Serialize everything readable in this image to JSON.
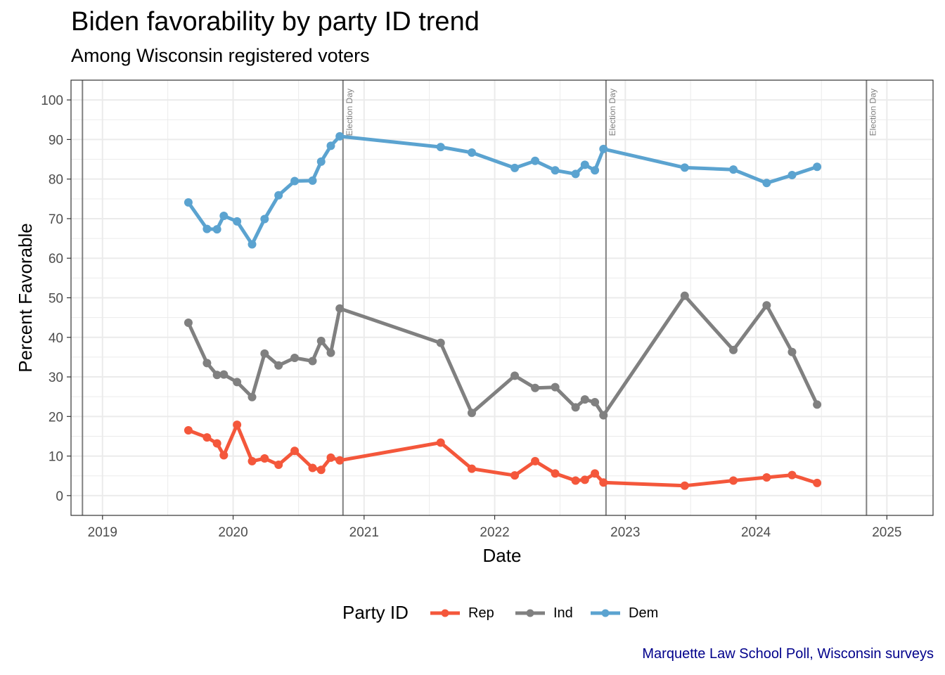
{
  "chart_data": {
    "type": "line",
    "title": "Biden favorability by party ID trend",
    "subtitle": "Among Wisconsin registered voters",
    "xlabel": "Date",
    "ylabel": "Percent Favorable",
    "caption": "Marquette Law School Poll, Wisconsin surveys",
    "x_range": [
      "2018-10-05",
      "2025-05-10"
    ],
    "ylim": [
      -5,
      105
    ],
    "y_ticks": [
      0,
      10,
      20,
      30,
      40,
      50,
      60,
      70,
      80,
      90,
      100
    ],
    "x_ticks": [
      {
        "date": "2019-01-01",
        "label": "2019"
      },
      {
        "date": "2020-01-01",
        "label": "2020"
      },
      {
        "date": "2021-01-01",
        "label": "2021"
      },
      {
        "date": "2022-01-01",
        "label": "2022"
      },
      {
        "date": "2023-01-01",
        "label": "2023"
      },
      {
        "date": "2024-01-01",
        "label": "2024"
      },
      {
        "date": "2025-01-01",
        "label": "2025"
      }
    ],
    "grid": true,
    "legend_title": "Party ID",
    "legend_position": "bottom",
    "reference_lines": [
      {
        "date": "2018-11-06",
        "label": ""
      },
      {
        "date": "2020-11-03",
        "label": "Election Day"
      },
      {
        "date": "2022-11-08",
        "label": "Election Day"
      },
      {
        "date": "2024-11-05",
        "label": "Election Day"
      }
    ],
    "series": [
      {
        "name": "Rep",
        "color": "#f4573b",
        "points": [
          [
            "2019-08-29",
            16.5
          ],
          [
            "2019-10-20",
            14.7
          ],
          [
            "2019-11-17",
            13.2
          ],
          [
            "2019-12-06",
            10.2
          ],
          [
            "2020-01-12",
            17.9
          ],
          [
            "2020-02-23",
            8.7
          ],
          [
            "2020-03-29",
            9.4
          ],
          [
            "2020-05-07",
            7.8
          ],
          [
            "2020-06-21",
            11.3
          ],
          [
            "2020-08-10",
            7.0
          ],
          [
            "2020-09-03",
            6.5
          ],
          [
            "2020-09-30",
            9.6
          ],
          [
            "2020-10-25",
            8.9
          ],
          [
            "2021-08-03",
            13.4
          ],
          [
            "2021-10-29",
            6.8
          ],
          [
            "2022-02-26",
            5.1
          ],
          [
            "2022-04-24",
            8.7
          ],
          [
            "2022-06-19",
            5.6
          ],
          [
            "2022-08-15",
            3.8
          ],
          [
            "2022-09-10",
            4.0
          ],
          [
            "2022-10-08",
            5.6
          ],
          [
            "2022-11-01",
            3.3
          ],
          [
            "2023-06-16",
            2.5
          ],
          [
            "2023-10-30",
            3.8
          ],
          [
            "2024-01-31",
            4.6
          ],
          [
            "2024-04-11",
            5.2
          ],
          [
            "2024-06-20",
            3.2
          ]
        ]
      },
      {
        "name": "Ind",
        "color": "#808080",
        "points": [
          [
            "2019-08-29",
            43.7
          ],
          [
            "2019-10-20",
            33.5
          ],
          [
            "2019-11-17",
            30.5
          ],
          [
            "2019-12-06",
            30.6
          ],
          [
            "2020-01-12",
            28.7
          ],
          [
            "2020-02-23",
            24.9
          ],
          [
            "2020-03-29",
            35.9
          ],
          [
            "2020-05-07",
            32.9
          ],
          [
            "2020-06-21",
            34.8
          ],
          [
            "2020-08-10",
            34.0
          ],
          [
            "2020-09-03",
            39.1
          ],
          [
            "2020-09-30",
            36.1
          ],
          [
            "2020-10-25",
            47.3
          ],
          [
            "2021-08-03",
            38.6
          ],
          [
            "2021-10-29",
            20.9
          ],
          [
            "2022-02-26",
            30.3
          ],
          [
            "2022-04-24",
            27.2
          ],
          [
            "2022-06-19",
            27.4
          ],
          [
            "2022-08-15",
            22.3
          ],
          [
            "2022-09-10",
            24.3
          ],
          [
            "2022-10-08",
            23.6
          ],
          [
            "2022-11-01",
            20.3
          ],
          [
            "2023-06-16",
            50.5
          ],
          [
            "2023-10-30",
            36.8
          ],
          [
            "2024-01-31",
            48.1
          ],
          [
            "2024-04-11",
            36.3
          ],
          [
            "2024-06-20",
            23.0
          ]
        ]
      },
      {
        "name": "Dem",
        "color": "#5ba3d0",
        "points": [
          [
            "2019-08-29",
            74.1
          ],
          [
            "2019-10-20",
            67.4
          ],
          [
            "2019-11-17",
            67.3
          ],
          [
            "2019-12-06",
            70.7
          ],
          [
            "2020-01-12",
            69.3
          ],
          [
            "2020-02-23",
            63.5
          ],
          [
            "2020-03-29",
            69.9
          ],
          [
            "2020-05-07",
            75.9
          ],
          [
            "2020-06-21",
            79.5
          ],
          [
            "2020-08-10",
            79.6
          ],
          [
            "2020-09-03",
            84.4
          ],
          [
            "2020-09-30",
            88.4
          ],
          [
            "2020-10-25",
            90.8
          ],
          [
            "2021-08-03",
            88.1
          ],
          [
            "2021-10-29",
            86.7
          ],
          [
            "2022-02-26",
            82.8
          ],
          [
            "2022-04-24",
            84.6
          ],
          [
            "2022-06-19",
            82.2
          ],
          [
            "2022-08-15",
            81.3
          ],
          [
            "2022-09-10",
            83.6
          ],
          [
            "2022-10-08",
            82.2
          ],
          [
            "2022-11-01",
            87.6
          ],
          [
            "2023-06-16",
            82.9
          ],
          [
            "2023-10-30",
            82.4
          ],
          [
            "2024-01-31",
            79.0
          ],
          [
            "2024-04-11",
            81.0
          ],
          [
            "2024-06-20",
            83.1
          ]
        ]
      }
    ]
  }
}
